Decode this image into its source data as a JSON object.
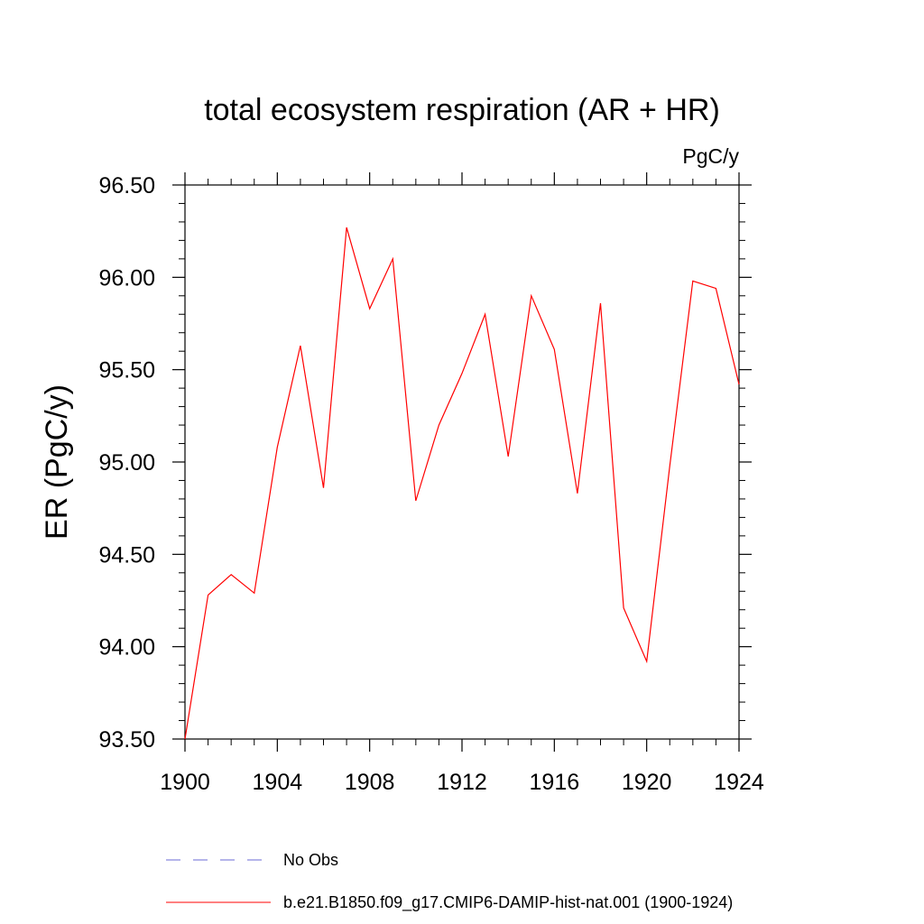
{
  "chart_data": {
    "type": "line",
    "title": "total ecosystem respiration (AR + HR)",
    "units_label": "PgC/y",
    "ylabel": "ER  (PgC/y)",
    "xlabel": "",
    "xlim": [
      1900,
      1924
    ],
    "ylim": [
      93.5,
      96.5
    ],
    "x_ticks": [
      "1900",
      "1904",
      "1908",
      "1912",
      "1916",
      "1920",
      "1924"
    ],
    "y_ticks": [
      "93.50",
      "94.00",
      "94.50",
      "95.00",
      "95.50",
      "96.00",
      "96.50"
    ],
    "grid": false,
    "legend_position": "bottom",
    "legend": [
      {
        "label": "No Obs",
        "color": "#6b6bd6",
        "style": "dashed"
      },
      {
        "label": "b.e21.B1850.f09_g17.CMIP6-DAMIP-hist-nat.001 (1900-1924)",
        "color": "#ff0000",
        "style": "solid"
      }
    ],
    "series": [
      {
        "name": "b.e21.B1850.f09_g17.CMIP6-DAMIP-hist-nat.001 (1900-1924)",
        "color": "#ff0000",
        "x": [
          1900,
          1901,
          1902,
          1903,
          1904,
          1905,
          1906,
          1907,
          1908,
          1909,
          1910,
          1911,
          1912,
          1913,
          1914,
          1915,
          1916,
          1917,
          1918,
          1919,
          1920,
          1921,
          1922,
          1923,
          1924
        ],
        "values": [
          93.5,
          94.28,
          94.39,
          94.29,
          95.08,
          95.63,
          94.86,
          96.27,
          95.83,
          96.1,
          94.79,
          95.2,
          95.48,
          95.8,
          95.03,
          95.9,
          95.61,
          94.83,
          95.86,
          94.21,
          93.92,
          94.98,
          95.98,
          95.94,
          95.42
        ]
      }
    ]
  }
}
